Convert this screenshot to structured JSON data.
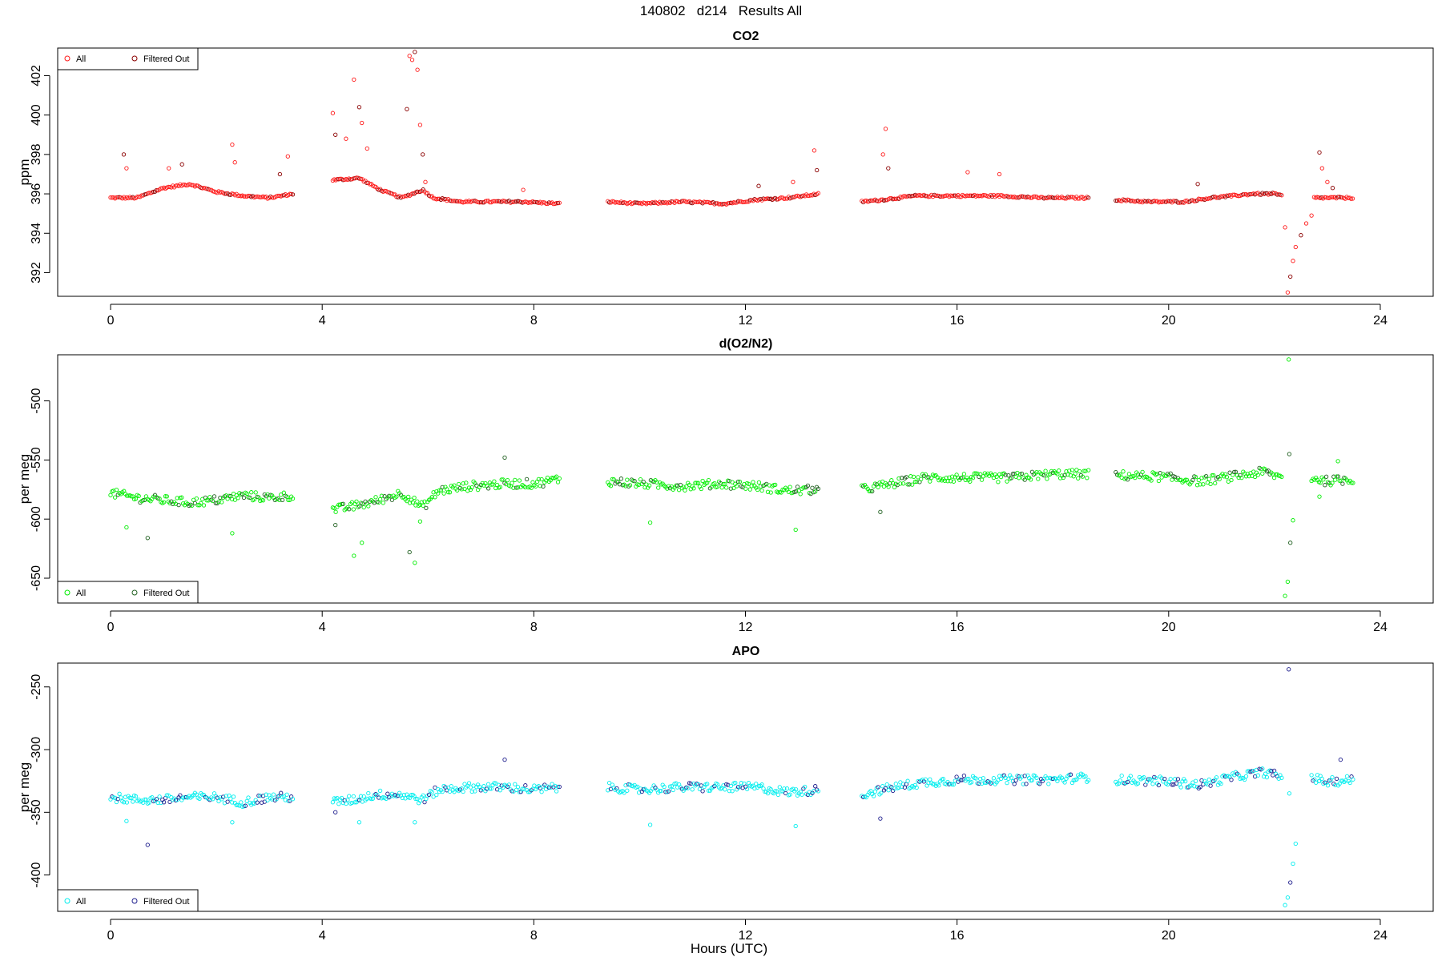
{
  "figure": {
    "title": "140802   d214   Results All",
    "xlabel": "Hours (UTC)"
  },
  "chart_data": [
    {
      "type": "scatter",
      "title": "CO2",
      "xlabel": "",
      "ylabel": "ppm",
      "xlim": [
        -1.0,
        25.0
      ],
      "ylim": [
        390.8,
        403.4
      ],
      "xticks": [
        0,
        4,
        8,
        12,
        16,
        20,
        24
      ],
      "yticks": [
        392,
        394,
        396,
        398,
        400,
        402
      ],
      "grid": false,
      "legend_position": "top-left",
      "colors": {
        "all": "#ff1a1a",
        "filtered": "#8b0000"
      },
      "baseline_segments": [
        {
          "x": [
            0.0,
            0.5,
            1.0,
            1.5,
            2.0,
            2.5,
            3.0,
            3.45
          ],
          "y": [
            395.8,
            395.8,
            396.3,
            396.5,
            396.1,
            395.9,
            395.8,
            396.0
          ]
        },
        {
          "x": [
            4.2,
            4.7,
            5.1,
            5.5,
            5.9,
            6.1,
            6.6,
            7.2,
            7.8,
            8.5
          ],
          "y": [
            396.7,
            396.8,
            396.2,
            395.8,
            396.2,
            395.8,
            395.6,
            395.6,
            395.6,
            395.5
          ]
        },
        {
          "x": [
            9.4,
            10.0,
            10.8,
            11.6,
            12.2,
            12.8,
            13.4
          ],
          "y": [
            395.6,
            395.5,
            395.6,
            395.5,
            395.7,
            395.8,
            396.0
          ]
        },
        {
          "x": [
            14.2,
            14.6,
            15.2,
            16.0,
            16.8,
            17.6,
            18.5
          ],
          "y": [
            395.6,
            395.7,
            395.9,
            395.9,
            395.9,
            395.8,
            395.8
          ]
        },
        {
          "x": [
            19.0,
            19.6,
            20.3,
            20.8,
            21.2,
            21.6,
            22.0,
            22.15
          ],
          "y": [
            395.7,
            395.6,
            395.6,
            395.8,
            395.9,
            396.0,
            396.0,
            395.9
          ]
        },
        {
          "x": [
            22.75,
            23.1,
            23.5
          ],
          "y": [
            395.8,
            395.8,
            395.8
          ]
        }
      ],
      "spikes": [
        {
          "x": 0.25,
          "y": 398.0
        },
        {
          "x": 0.3,
          "y": 397.3
        },
        {
          "x": 1.1,
          "y": 397.3
        },
        {
          "x": 1.35,
          "y": 397.5
        },
        {
          "x": 2.3,
          "y": 398.5
        },
        {
          "x": 2.35,
          "y": 397.6
        },
        {
          "x": 3.2,
          "y": 397.0
        },
        {
          "x": 3.35,
          "y": 397.9
        },
        {
          "x": 4.2,
          "y": 400.1
        },
        {
          "x": 4.25,
          "y": 399.0
        },
        {
          "x": 4.45,
          "y": 398.8
        },
        {
          "x": 4.6,
          "y": 401.8
        },
        {
          "x": 4.7,
          "y": 400.4
        },
        {
          "x": 4.75,
          "y": 399.6
        },
        {
          "x": 4.85,
          "y": 398.3
        },
        {
          "x": 5.6,
          "y": 400.3
        },
        {
          "x": 5.65,
          "y": 403.0
        },
        {
          "x": 5.7,
          "y": 402.8
        },
        {
          "x": 5.75,
          "y": 403.2
        },
        {
          "x": 5.8,
          "y": 402.3
        },
        {
          "x": 5.85,
          "y": 399.5
        },
        {
          "x": 5.9,
          "y": 398.0
        },
        {
          "x": 5.95,
          "y": 396.6
        },
        {
          "x": 7.8,
          "y": 396.2
        },
        {
          "x": 12.25,
          "y": 396.4
        },
        {
          "x": 12.9,
          "y": 396.6
        },
        {
          "x": 13.3,
          "y": 398.2
        },
        {
          "x": 13.35,
          "y": 397.2
        },
        {
          "x": 14.6,
          "y": 398.0
        },
        {
          "x": 14.65,
          "y": 399.3
        },
        {
          "x": 14.7,
          "y": 397.3
        },
        {
          "x": 16.2,
          "y": 397.1
        },
        {
          "x": 16.8,
          "y": 397.0
        },
        {
          "x": 20.55,
          "y": 396.5
        },
        {
          "x": 22.2,
          "y": 394.3
        },
        {
          "x": 22.25,
          "y": 391.0
        },
        {
          "x": 22.3,
          "y": 391.8
        },
        {
          "x": 22.35,
          "y": 392.6
        },
        {
          "x": 22.4,
          "y": 393.3
        },
        {
          "x": 22.5,
          "y": 393.9
        },
        {
          "x": 22.6,
          "y": 394.5
        },
        {
          "x": 22.7,
          "y": 394.9
        },
        {
          "x": 22.85,
          "y": 398.1
        },
        {
          "x": 22.9,
          "y": 397.3
        },
        {
          "x": 23.0,
          "y": 396.6
        },
        {
          "x": 23.1,
          "y": 396.3
        }
      ],
      "legend": {
        "entries": [
          "All",
          "Filtered Out"
        ]
      }
    },
    {
      "type": "scatter",
      "title": "d(O2/N2)",
      "xlabel": "",
      "ylabel": "per meg",
      "xlim": [
        -1.0,
        25.0
      ],
      "ylim": [
        -671,
        -461
      ],
      "xticks": [
        0,
        4,
        8,
        12,
        16,
        20,
        24
      ],
      "yticks": [
        -650,
        -600,
        -550,
        -500
      ],
      "grid": false,
      "legend_position": "bottom-left",
      "colors": {
        "all": "#00ee00",
        "filtered": "#1f5f1f"
      },
      "baseline_segments": [
        {
          "x": [
            0.0,
            0.5,
            1.0,
            1.5,
            2.0,
            2.5,
            3.0,
            3.45
          ],
          "y": [
            -578,
            -582,
            -584,
            -586,
            -584,
            -580,
            -582,
            -580
          ]
        },
        {
          "x": [
            4.2,
            4.5,
            5.0,
            5.5,
            5.9,
            6.2,
            6.8,
            7.5,
            8.0,
            8.5
          ],
          "y": [
            -592,
            -590,
            -585,
            -578,
            -590,
            -576,
            -572,
            -570,
            -570,
            -566
          ]
        },
        {
          "x": [
            9.4,
            10.0,
            10.8,
            11.6,
            12.2,
            12.8,
            13.4
          ],
          "y": [
            -568,
            -570,
            -572,
            -570,
            -572,
            -576,
            -575
          ]
        },
        {
          "x": [
            14.2,
            14.8,
            15.4,
            16.2,
            17.0,
            17.8,
            18.5
          ],
          "y": [
            -575,
            -570,
            -565,
            -565,
            -565,
            -562,
            -562
          ]
        },
        {
          "x": [
            19.0,
            19.8,
            20.6,
            21.2,
            21.8,
            22.15
          ],
          "y": [
            -563,
            -564,
            -568,
            -564,
            -560,
            -565
          ]
        },
        {
          "x": [
            22.7,
            23.0,
            23.5
          ],
          "y": [
            -565,
            -568,
            -566
          ]
        }
      ],
      "spikes": [
        {
          "x": 0.7,
          "y": -616
        },
        {
          "x": 0.3,
          "y": -607
        },
        {
          "x": 2.3,
          "y": -612
        },
        {
          "x": 4.25,
          "y": -605
        },
        {
          "x": 4.6,
          "y": -631
        },
        {
          "x": 4.75,
          "y": -620
        },
        {
          "x": 5.65,
          "y": -628
        },
        {
          "x": 5.75,
          "y": -637
        },
        {
          "x": 5.85,
          "y": -602
        },
        {
          "x": 7.45,
          "y": -548
        },
        {
          "x": 10.2,
          "y": -603
        },
        {
          "x": 12.95,
          "y": -609
        },
        {
          "x": 14.55,
          "y": -594
        },
        {
          "x": 22.2,
          "y": -665
        },
        {
          "x": 22.25,
          "y": -653
        },
        {
          "x": 22.3,
          "y": -620
        },
        {
          "x": 22.35,
          "y": -601
        },
        {
          "x": 22.27,
          "y": -465
        },
        {
          "x": 22.28,
          "y": -545
        },
        {
          "x": 22.85,
          "y": -581
        },
        {
          "x": 23.2,
          "y": -551
        }
      ],
      "legend": {
        "entries": [
          "All",
          "Filtered Out"
        ]
      }
    },
    {
      "type": "scatter",
      "title": "APO",
      "xlabel": "Hours (UTC)",
      "ylabel": "per meg",
      "xlim": [
        -1.0,
        25.0
      ],
      "ylim": [
        -429,
        -231
      ],
      "xticks": [
        0,
        4,
        8,
        12,
        16,
        20,
        24
      ],
      "yticks": [
        -400,
        -350,
        -300,
        -250
      ],
      "grid": false,
      "legend_position": "bottom-left",
      "colors": {
        "all": "#00eeee",
        "filtered": "#1c1c8c"
      },
      "baseline_segments": [
        {
          "x": [
            0.0,
            0.5,
            1.0,
            1.5,
            2.0,
            2.5,
            3.0,
            3.45
          ],
          "y": [
            -338,
            -340,
            -340,
            -338,
            -338,
            -342,
            -338,
            -338
          ]
        },
        {
          "x": [
            4.2,
            4.6,
            5.0,
            5.5,
            5.9,
            6.2,
            6.8,
            7.5,
            8.0,
            8.5
          ],
          "y": [
            -342,
            -340,
            -336,
            -336,
            -340,
            -332,
            -330,
            -330,
            -332,
            -330
          ]
        },
        {
          "x": [
            9.4,
            10.0,
            10.8,
            11.6,
            12.2,
            12.8,
            13.4
          ],
          "y": [
            -330,
            -332,
            -330,
            -330,
            -330,
            -334,
            -332
          ]
        },
        {
          "x": [
            14.2,
            14.8,
            15.4,
            16.2,
            17.0,
            17.8,
            18.5
          ],
          "y": [
            -336,
            -330,
            -326,
            -324,
            -324,
            -324,
            -322
          ]
        },
        {
          "x": [
            19.0,
            19.8,
            20.6,
            21.2,
            21.8,
            22.15
          ],
          "y": [
            -324,
            -325,
            -328,
            -322,
            -318,
            -322
          ]
        },
        {
          "x": [
            22.7,
            23.0,
            23.5
          ],
          "y": [
            -322,
            -326,
            -324
          ]
        }
      ],
      "spikes": [
        {
          "x": 0.7,
          "y": -376
        },
        {
          "x": 0.3,
          "y": -357
        },
        {
          "x": 2.3,
          "y": -358
        },
        {
          "x": 4.25,
          "y": -350
        },
        {
          "x": 4.7,
          "y": -358
        },
        {
          "x": 5.75,
          "y": -358
        },
        {
          "x": 7.45,
          "y": -308
        },
        {
          "x": 10.2,
          "y": -360
        },
        {
          "x": 12.95,
          "y": -361
        },
        {
          "x": 14.55,
          "y": -355
        },
        {
          "x": 22.2,
          "y": -424
        },
        {
          "x": 22.25,
          "y": -418
        },
        {
          "x": 22.3,
          "y": -406
        },
        {
          "x": 22.35,
          "y": -391
        },
        {
          "x": 22.4,
          "y": -375
        },
        {
          "x": 22.27,
          "y": -236
        },
        {
          "x": 22.28,
          "y": -335
        },
        {
          "x": 22.85,
          "y": -325
        },
        {
          "x": 23.25,
          "y": -308
        }
      ],
      "legend": {
        "entries": [
          "All",
          "Filtered Out"
        ]
      }
    }
  ]
}
